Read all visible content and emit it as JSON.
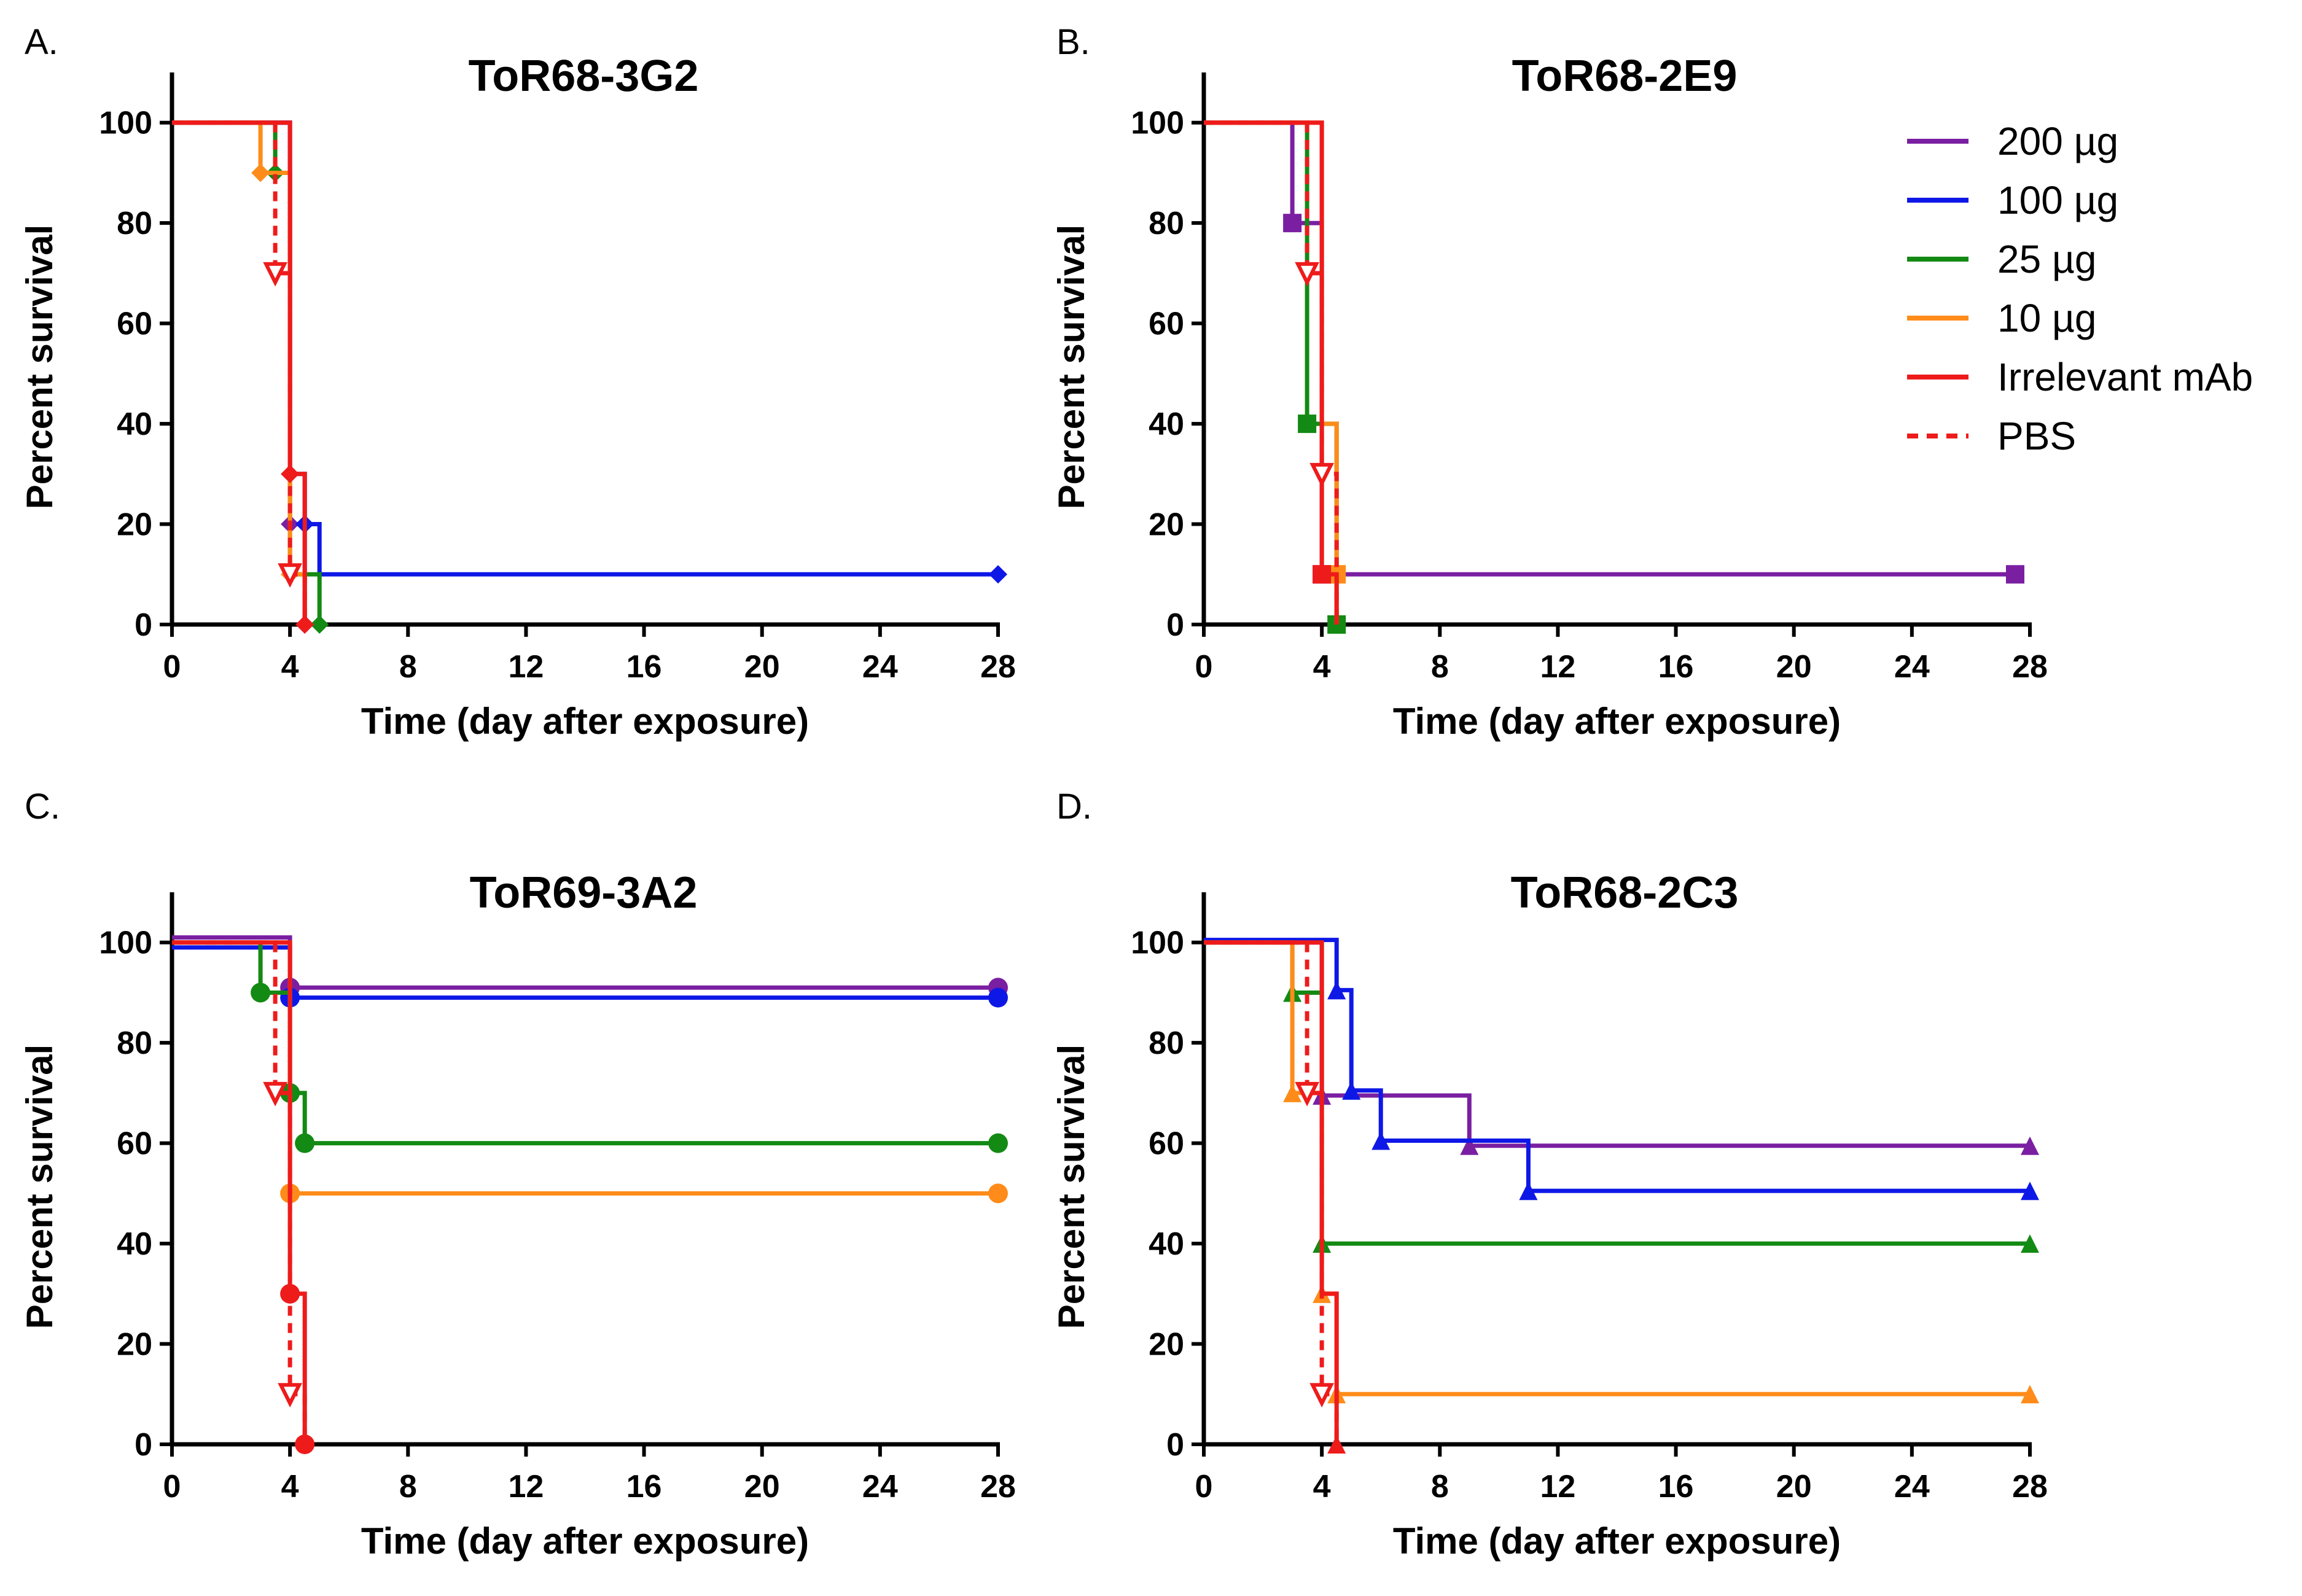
{
  "legend": [
    {
      "key": "200",
      "label": "200 µg",
      "color": "#7a1fa2",
      "dashed": false
    },
    {
      "key": "100",
      "label": "100 µg",
      "color": "#0e18e6",
      "dashed": false
    },
    {
      "key": "25",
      "label": "25 µg",
      "color": "#138a13",
      "dashed": false
    },
    {
      "key": "10",
      "label": "10 µg",
      "color": "#ff8c1a",
      "dashed": false
    },
    {
      "key": "irr",
      "label": "Irrelevant mAb",
      "color": "#ee1b1b",
      "dashed": false
    },
    {
      "key": "pbs",
      "label": "PBS",
      "color": "#ee1b1b",
      "dashed": true
    }
  ],
  "chart_data": [
    {
      "type": "line",
      "panel": "A.",
      "title": "ToR68-3G2",
      "xlabel": "Time (day after exposure)",
      "ylabel": "Percent survival",
      "xlim": [
        0,
        28
      ],
      "ylim": [
        0,
        110
      ],
      "xticks": [
        0,
        4,
        8,
        12,
        16,
        20,
        24,
        28
      ],
      "yticks": [
        0,
        20,
        40,
        60,
        80,
        100
      ],
      "marker": "diamond",
      "series": [
        {
          "key": "200",
          "name": "200 µg",
          "points": [
            [
              0,
              100
            ],
            [
              4,
              100
            ],
            [
              4,
              20
            ],
            [
              4.5,
              20
            ],
            [
              4.5,
              0
            ]
          ],
          "marks": [
            [
              4,
              20
            ],
            [
              4.5,
              0
            ]
          ]
        },
        {
          "key": "100",
          "name": "100 µg",
          "points": [
            [
              0,
              100
            ],
            [
              4,
              100
            ],
            [
              4,
              30
            ],
            [
              4.5,
              30
            ],
            [
              4.5,
              20
            ],
            [
              5,
              20
            ],
            [
              5,
              10
            ],
            [
              28,
              10
            ]
          ],
          "marks": [
            [
              4.5,
              20
            ],
            [
              28,
              10
            ]
          ]
        },
        {
          "key": "25",
          "name": "25 µg",
          "points": [
            [
              0,
              100
            ],
            [
              3.5,
              100
            ],
            [
              3.5,
              90
            ],
            [
              4,
              90
            ],
            [
              4,
              10
            ],
            [
              5,
              10
            ],
            [
              5,
              0
            ]
          ],
          "marks": [
            [
              3.5,
              90
            ],
            [
              5,
              0
            ]
          ]
        },
        {
          "key": "10",
          "name": "10 µg",
          "points": [
            [
              0,
              100
            ],
            [
              3,
              100
            ],
            [
              3,
              90
            ],
            [
              4,
              90
            ],
            [
              4,
              10
            ],
            [
              4.5,
              10
            ],
            [
              4.5,
              0
            ]
          ],
          "marks": [
            [
              3,
              90
            ],
            [
              4,
              10
            ]
          ]
        },
        {
          "key": "irr",
          "name": "Irrelevant mAb",
          "points": [
            [
              0,
              100
            ],
            [
              4,
              100
            ],
            [
              4,
              30
            ],
            [
              4.5,
              30
            ],
            [
              4.5,
              0
            ]
          ],
          "marks": [
            [
              4,
              30
            ],
            [
              4.5,
              0
            ]
          ]
        },
        {
          "key": "pbs",
          "name": "PBS",
          "points": [
            [
              0,
              100
            ],
            [
              3.5,
              100
            ],
            [
              3.5,
              70
            ],
            [
              4,
              70
            ],
            [
              4,
              10
            ],
            [
              4.5,
              10
            ],
            [
              4.5,
              0
            ]
          ],
          "marks": [
            [
              3.5,
              70
            ],
            [
              4,
              10
            ]
          ]
        }
      ]
    },
    {
      "type": "line",
      "panel": "B.",
      "title": "ToR68-2E9",
      "xlabel": "Time (day after exposure)",
      "ylabel": "Percent survival",
      "xlim": [
        0,
        28
      ],
      "ylim": [
        0,
        110
      ],
      "xticks": [
        0,
        4,
        8,
        12,
        16,
        20,
        24,
        28
      ],
      "yticks": [
        0,
        20,
        40,
        60,
        80,
        100
      ],
      "marker": "square",
      "series": [
        {
          "key": "200",
          "name": "200 µg",
          "points": [
            [
              0,
              100
            ],
            [
              3,
              100
            ],
            [
              3,
              80
            ],
            [
              4,
              80
            ],
            [
              4,
              10
            ],
            [
              27.5,
              10
            ]
          ],
          "marks": [
            [
              3,
              80
            ],
            [
              4,
              10
            ],
            [
              27.5,
              10
            ]
          ]
        },
        {
          "key": "25",
          "name": "25 µg",
          "points": [
            [
              0,
              100
            ],
            [
              3.5,
              100
            ],
            [
              3.5,
              40
            ],
            [
              4.5,
              40
            ],
            [
              4.5,
              0
            ]
          ],
          "marks": [
            [
              3.5,
              40
            ],
            [
              4.5,
              0
            ]
          ]
        },
        {
          "key": "10",
          "name": "10 µg",
          "points": [
            [
              0,
              100
            ],
            [
              4,
              100
            ],
            [
              4,
              40
            ],
            [
              4.5,
              40
            ],
            [
              4.5,
              10
            ],
            [
              4.5,
              0
            ]
          ],
          "marks": [
            [
              4.5,
              10
            ]
          ]
        },
        {
          "key": "irr",
          "name": "Irrelevant mAb",
          "points": [
            [
              0,
              100
            ],
            [
              4,
              100
            ],
            [
              4,
              10
            ],
            [
              4.5,
              10
            ],
            [
              4.5,
              0
            ]
          ],
          "marks": [
            [
              4,
              10
            ]
          ]
        },
        {
          "key": "pbs",
          "name": "PBS",
          "points": [
            [
              0,
              100
            ],
            [
              3.5,
              100
            ],
            [
              3.5,
              70
            ],
            [
              4,
              70
            ],
            [
              4,
              30
            ],
            [
              4.5,
              30
            ],
            [
              4.5,
              0
            ]
          ],
          "marks": [
            [
              3.5,
              70
            ],
            [
              4,
              30
            ]
          ]
        }
      ]
    },
    {
      "type": "line",
      "panel": "C.",
      "title": "ToR69-3A2",
      "xlabel": "Time (day after exposure)",
      "ylabel": "Percent survival",
      "xlim": [
        0,
        28
      ],
      "ylim": [
        0,
        110
      ],
      "xticks": [
        0,
        4,
        8,
        12,
        16,
        20,
        24,
        28
      ],
      "yticks": [
        0,
        20,
        40,
        60,
        80,
        100
      ],
      "marker": "circle",
      "series": [
        {
          "key": "200",
          "name": "200 µg",
          "points": [
            [
              0,
              101
            ],
            [
              4,
              101
            ],
            [
              4,
              91
            ],
            [
              28,
              91
            ]
          ],
          "marks": [
            [
              4,
              91
            ],
            [
              28,
              91
            ]
          ]
        },
        {
          "key": "100",
          "name": "100 µg",
          "points": [
            [
              0,
              99
            ],
            [
              4,
              99
            ],
            [
              4,
              89
            ],
            [
              28,
              89
            ]
          ],
          "marks": [
            [
              4,
              89
            ],
            [
              28,
              89
            ]
          ]
        },
        {
          "key": "25",
          "name": "25 µg",
          "points": [
            [
              0,
              100
            ],
            [
              3,
              100
            ],
            [
              3,
              90
            ],
            [
              4,
              90
            ],
            [
              4,
              70
            ],
            [
              4.5,
              70
            ],
            [
              4.5,
              60
            ],
            [
              28,
              60
            ]
          ],
          "marks": [
            [
              3,
              90
            ],
            [
              4,
              70
            ],
            [
              4.5,
              60
            ],
            [
              28,
              60
            ]
          ]
        },
        {
          "key": "10",
          "name": "10 µg",
          "points": [
            [
              0,
              100
            ],
            [
              4,
              100
            ],
            [
              4,
              50
            ],
            [
              28,
              50
            ]
          ],
          "marks": [
            [
              4,
              50
            ],
            [
              28,
              50
            ]
          ]
        },
        {
          "key": "irr",
          "name": "Irrelevant mAb",
          "points": [
            [
              0,
              100
            ],
            [
              4,
              100
            ],
            [
              4,
              30
            ],
            [
              4.5,
              30
            ],
            [
              4.5,
              0
            ]
          ],
          "marks": [
            [
              4,
              30
            ],
            [
              4.5,
              0
            ]
          ]
        },
        {
          "key": "pbs",
          "name": "PBS",
          "points": [
            [
              0,
              100
            ],
            [
              3.5,
              100
            ],
            [
              3.5,
              70
            ],
            [
              4,
              70
            ],
            [
              4,
              10
            ],
            [
              4.5,
              10
            ],
            [
              4.5,
              0
            ]
          ],
          "marks": [
            [
              3.5,
              70
            ],
            [
              4,
              10
            ]
          ]
        }
      ]
    },
    {
      "type": "line",
      "panel": "D.",
      "title": "ToR68-2C3",
      "xlabel": "Time (day after exposure)",
      "ylabel": "Percent survival",
      "xlim": [
        0,
        28
      ],
      "ylim": [
        0,
        110
      ],
      "xticks": [
        0,
        4,
        8,
        12,
        16,
        20,
        24,
        28
      ],
      "yticks": [
        0,
        20,
        40,
        60,
        80,
        100
      ],
      "marker": "triangle",
      "series": [
        {
          "key": "200",
          "name": "200 µg",
          "points": [
            [
              0,
              100
            ],
            [
              4,
              100
            ],
            [
              4,
              69.5
            ],
            [
              9,
              69.5
            ],
            [
              9,
              59.5
            ],
            [
              28,
              59.5
            ]
          ],
          "marks": [
            [
              4,
              69.5
            ],
            [
              9,
              59.5
            ],
            [
              28,
              59.5
            ]
          ]
        },
        {
          "key": "100",
          "name": "100 µg",
          "points": [
            [
              0,
              100.5
            ],
            [
              4.5,
              100.5
            ],
            [
              4.5,
              90.5
            ],
            [
              5,
              90.5
            ],
            [
              5,
              70.5
            ],
            [
              6,
              70.5
            ],
            [
              6,
              60.5
            ],
            [
              11,
              60.5
            ],
            [
              11,
              50.5
            ],
            [
              28,
              50.5
            ]
          ],
          "marks": [
            [
              4.5,
              90.5
            ],
            [
              5,
              70.5
            ],
            [
              6,
              60.5
            ],
            [
              11,
              50.5
            ],
            [
              28,
              50.5
            ]
          ]
        },
        {
          "key": "25",
          "name": "25 µg",
          "points": [
            [
              0,
              100
            ],
            [
              3,
              100
            ],
            [
              3,
              90
            ],
            [
              4,
              90
            ],
            [
              4,
              40
            ],
            [
              28,
              40
            ]
          ],
          "marks": [
            [
              3,
              90
            ],
            [
              4,
              40
            ],
            [
              28,
              40
            ]
          ]
        },
        {
          "key": "10",
          "name": "10 µg",
          "points": [
            [
              0,
              100
            ],
            [
              3,
              100
            ],
            [
              3,
              70
            ],
            [
              4,
              70
            ],
            [
              4,
              30
            ],
            [
              4.5,
              30
            ],
            [
              4.5,
              10
            ],
            [
              28,
              10
            ]
          ],
          "marks": [
            [
              3,
              70
            ],
            [
              4,
              30
            ],
            [
              4.5,
              10
            ],
            [
              28,
              10
            ]
          ]
        },
        {
          "key": "irr",
          "name": "Irrelevant mAb",
          "points": [
            [
              0,
              100
            ],
            [
              4,
              100
            ],
            [
              4,
              30
            ],
            [
              4.5,
              30
            ],
            [
              4.5,
              0
            ]
          ],
          "marks": [
            [
              4.5,
              0
            ]
          ]
        },
        {
          "key": "pbs",
          "name": "PBS",
          "points": [
            [
              0,
              100
            ],
            [
              3.5,
              100
            ],
            [
              3.5,
              70
            ],
            [
              4,
              70
            ],
            [
              4,
              10
            ],
            [
              4.5,
              10
            ],
            [
              4.5,
              0
            ]
          ],
          "marks": [
            [
              3.5,
              70
            ],
            [
              4,
              10
            ]
          ]
        }
      ]
    }
  ]
}
